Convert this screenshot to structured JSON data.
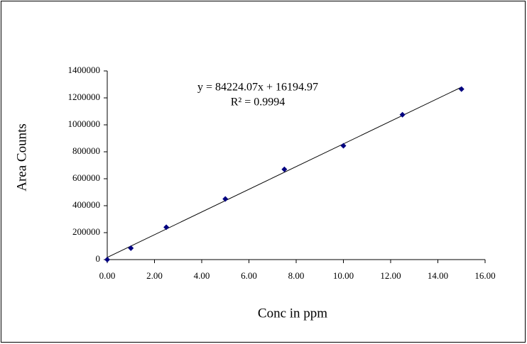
{
  "chart_data": {
    "type": "scatter",
    "x_label": "Conc in ppm",
    "y_label": "Area Counts",
    "x": [
      0,
      1,
      2.5,
      5,
      7.5,
      10,
      12.5,
      15
    ],
    "values": [
      0,
      85000,
      240000,
      450000,
      670000,
      845000,
      1075000,
      1265000
    ],
    "color": "#000080",
    "xlim": [
      0,
      16
    ],
    "xticks": [
      {
        "value": 0,
        "label": "0.00"
      },
      {
        "value": 2,
        "label": "2.00"
      },
      {
        "value": 4,
        "label": "4.00"
      },
      {
        "value": 6,
        "label": "6.00"
      },
      {
        "value": 8,
        "label": "8.00"
      },
      {
        "value": 10,
        "label": "10.00"
      },
      {
        "value": 12,
        "label": "12.00"
      },
      {
        "value": 14,
        "label": "14.00"
      },
      {
        "value": 16,
        "label": "16.00"
      }
    ],
    "ylim": [
      0,
      1400000
    ],
    "yticks": [
      0,
      200000,
      400000,
      600000,
      800000,
      1000000,
      1200000,
      1400000
    ],
    "grid": false,
    "trendline": {
      "slope": 84224.07,
      "intercept": 16194.97,
      "label": "y = 84224.07x + 16194.97",
      "r2": 0.9994,
      "r2_label": "R² = 0.9994"
    }
  }
}
